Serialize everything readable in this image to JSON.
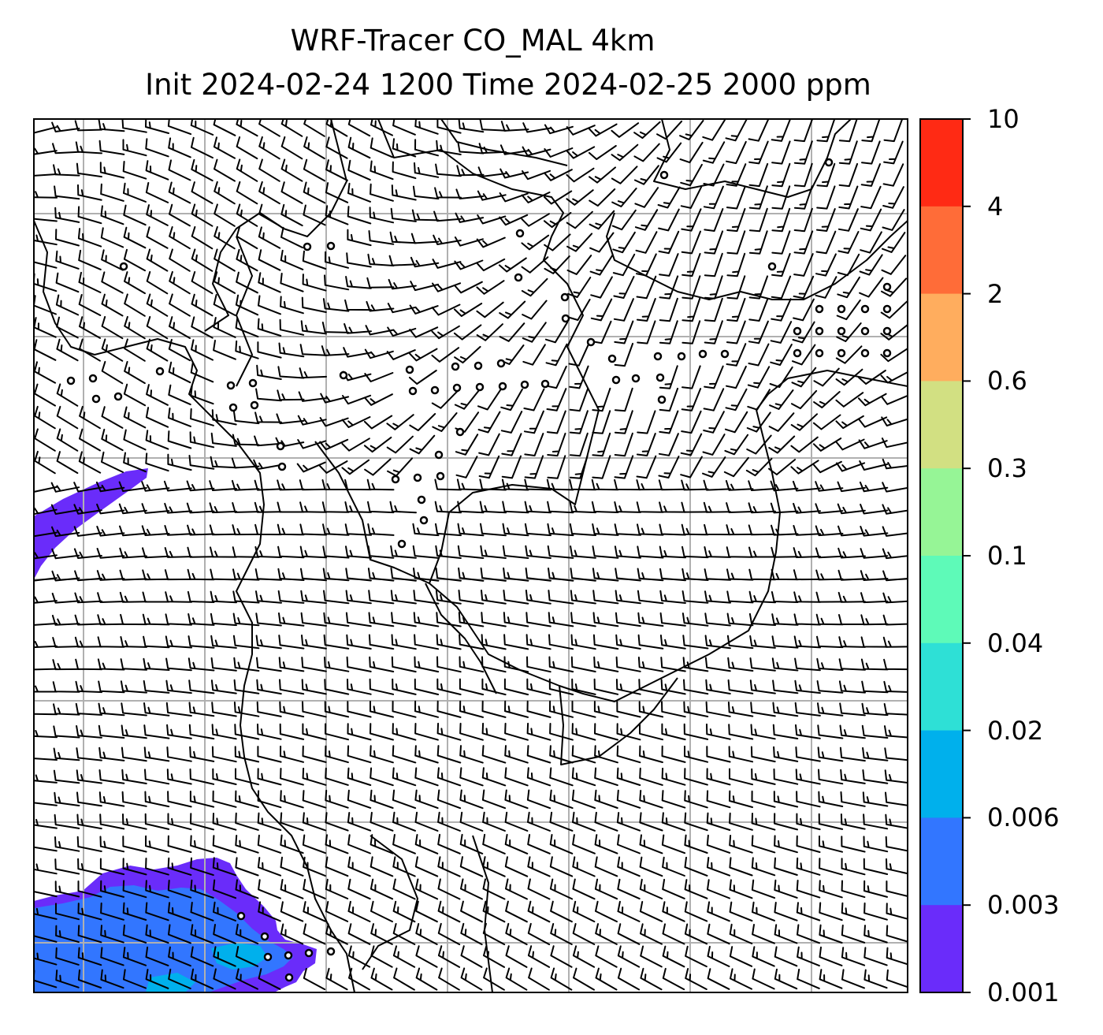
{
  "title": {
    "line1": "WRF-Tracer CO_MAL 4km",
    "line2": "Init 2024-02-24 1200 Time 2024-02-25 2000 ppm"
  },
  "colorbar": {
    "levels": [
      {
        "label": "10",
        "color": "#ff2a14"
      },
      {
        "label": "4",
        "color": "#ff6c38"
      },
      {
        "label": "2",
        "color": "#ffad5e"
      },
      {
        "label": "0.6",
        "color": "#d2e082"
      },
      {
        "label": "0.3",
        "color": "#96f596"
      },
      {
        "label": "0.1",
        "color": "#5efab8"
      },
      {
        "label": "0.04",
        "color": "#2ee0d6"
      },
      {
        "label": "0.02",
        "color": "#00b0ec"
      },
      {
        "label": "0.006",
        "color": "#3276ff"
      },
      {
        "label": "0.003",
        "color": "#6a2cfa"
      },
      {
        "label": "0.001",
        "color": null
      }
    ]
  },
  "map": {
    "icon": "wind-barb-field",
    "gridline_color": "#b0b0b0",
    "coastline_color": "#000000",
    "tracer_plumes": [
      {
        "name": "northwest-plume",
        "level": "0.001-0.003",
        "color": "#6a2cfa"
      },
      {
        "name": "southwest-plume",
        "level": "0.001-0.02",
        "colors": [
          "#6a2cfa",
          "#3276ff",
          "#00b0ec"
        ]
      }
    ]
  }
}
